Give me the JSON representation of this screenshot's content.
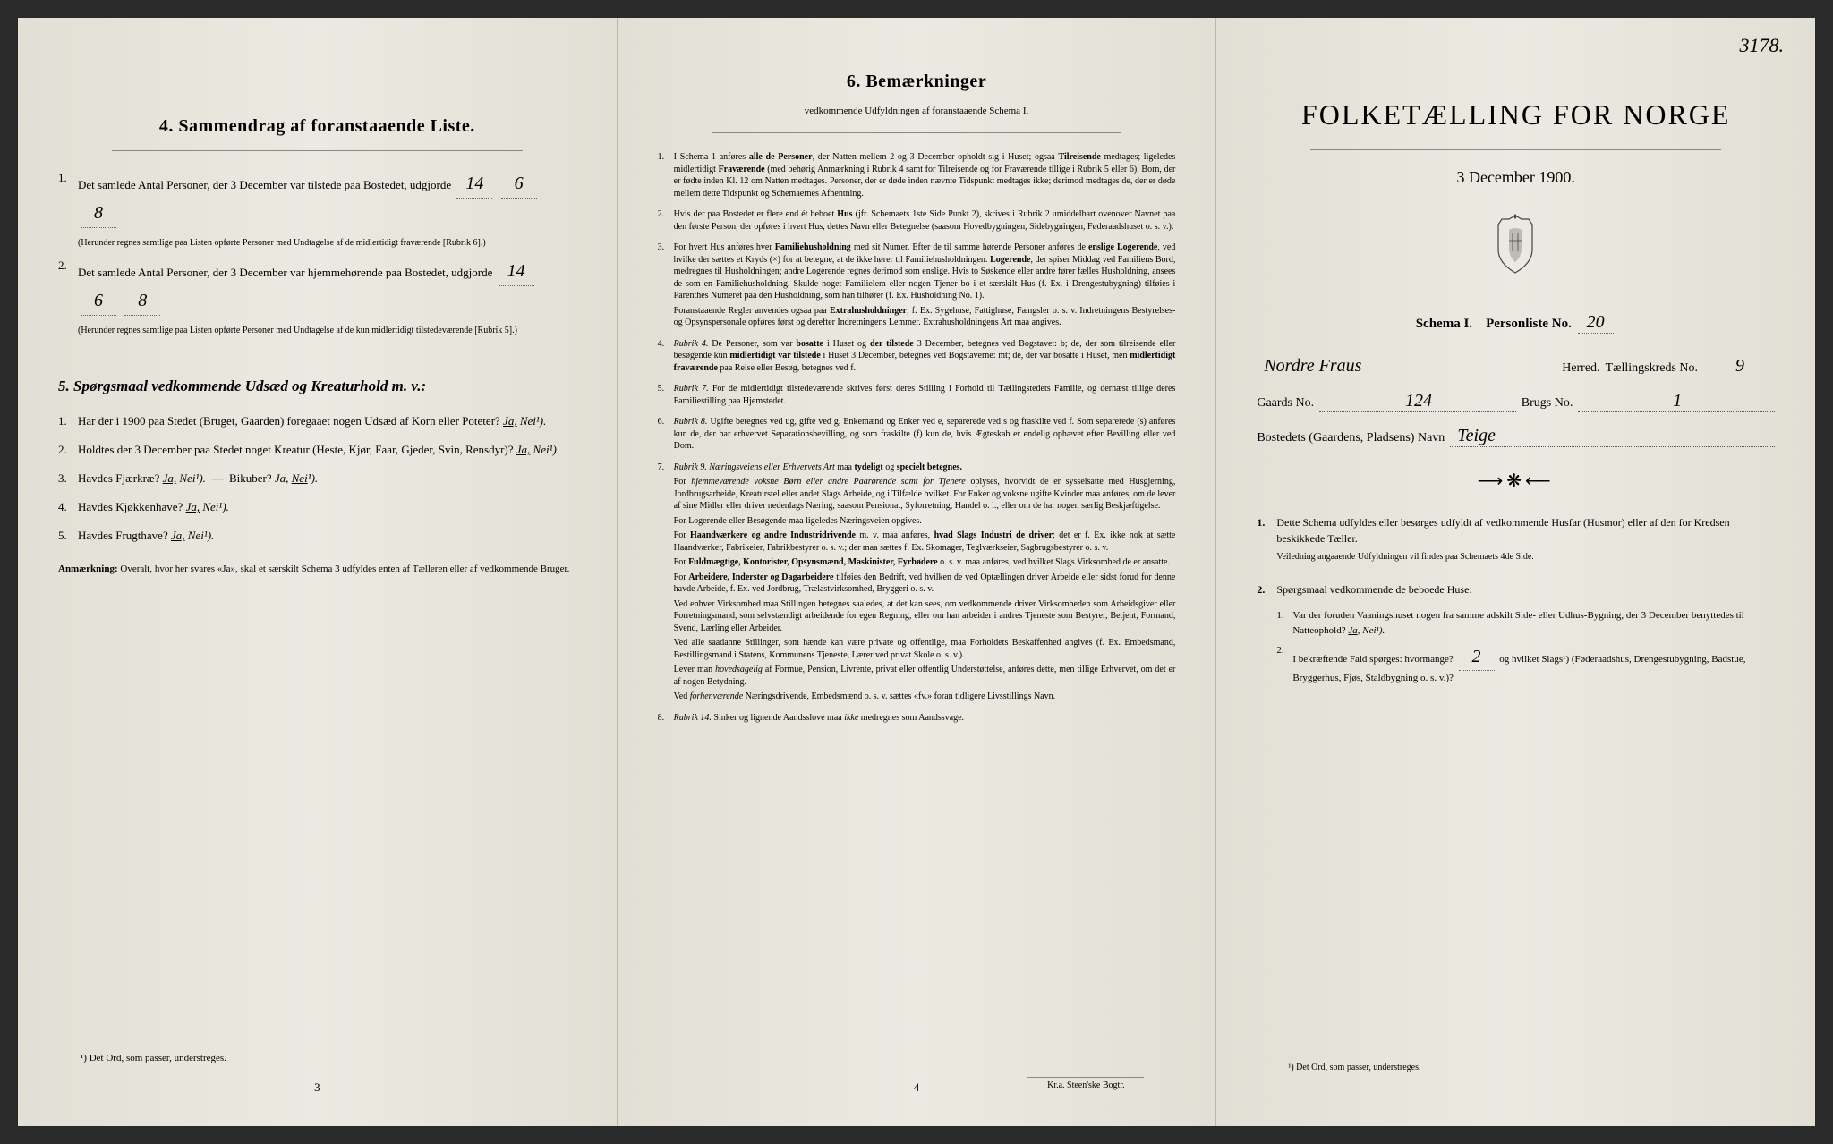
{
  "corner_number": "3178.",
  "page_left": {
    "section4_title": "4.   Sammendrag af foranstaaende Liste.",
    "item1": "Det samlede Antal Personer, der 3 December var tilstede paa Bostedet, udgjorde",
    "item1_total": "14",
    "item1_m": "6",
    "item1_f": "8",
    "item1_note": "(Herunder regnes samtlige paa Listen opførte Personer med Undtagelse af de midlertidigt fraværende [Rubrik 6].)",
    "item2": "Det samlede Antal Personer, der 3 December var hjemmehørende paa Bostedet, udgjorde",
    "item2_total": "14",
    "item2_m": "6",
    "item2_f": "8",
    "item2_note": "(Herunder regnes samtlige paa Listen opførte Personer med Undtagelse af de kun midlertidigt tilstedeværende [Rubrik 5].)",
    "section5_title": "5.   Spørgsmaal vedkommende Udsæd og Kreaturhold m. v.:",
    "q1": "Har der i 1900 paa Stedet (Bruget, Gaarden) foregaaet nogen Udsæd af Korn eller Poteter?",
    "q2": "Holdtes der 3 December paa Stedet noget Kreatur (Heste, Kjør, Faar, Gjeder, Svin, Rensdyr)?",
    "q3a": "Havdes Fjærkræ?",
    "q3b": "Bikuber?",
    "q4": "Havdes Kjøkkenhave?",
    "q5": "Havdes Frugthave?",
    "ja": "Ja,",
    "nei": "Nei",
    "nei_sup": "¹).",
    "anmaerkning_label": "Anmærkning:",
    "anmaerkning": "Overalt, hvor her svares «Ja», skal et særskilt Schema 3 udfyldes enten af Tælleren eller af vedkommende Bruger.",
    "footnote": "¹) Det Ord, som passer, understreges.",
    "page_num": "3"
  },
  "page_middle": {
    "title": "6.   Bemærkninger",
    "subtitle": "vedkommende Udfyldningen af foranstaaende Schema I.",
    "items": [
      {
        "num": "1.",
        "paras": [
          "I Schema 1 anføres <b>alle de Personer</b>, der Natten mellem 2 og 3 December opholdt sig i Huset; ogsaa <b>Tilreisende</b> medtages; ligeledes midlertidigt <b>Fraværende</b> (med behørig Anmærkning i Rubrik 4 samt for Tilreisende og for Fraværende tillige i Rubrik 5 eller 6). Born, der er fødte inden Kl. 12 om Natten medtages. Personer, der er døde inden nævnte Tidspunkt medtages ikke; derimod medtages de, der er døde mellem dette Tidspunkt og Schemaernes Afhentning."
        ]
      },
      {
        "num": "2.",
        "paras": [
          "Hvis der paa Bostedet er flere end ét beboet <b>Hus</b> (jfr. Schemaets 1ste Side Punkt 2), skrives i Rubrik 2 umiddelbart ovenover Navnet paa den første Person, der opføres i hvert Hus, dettes Navn eller Betegnelse (saasom Hovedbygningen, Sidebygningen, Føderaadshuset o. s. v.)."
        ]
      },
      {
        "num": "3.",
        "paras": [
          "For hvert Hus anføres hver <b>Familiehusholdning</b> med sit Numer. Efter de til samme hørende Personer anføres de <b>enslige Logerende</b>, ved hvilke der sættes et Kryds (×) for at betegne, at de ikke hører til Familiehusholdningen. <b>Logerende</b>, der spiser Middag ved Familiens Bord, medregnes til Husholdningen; andre Logerende regnes derimod som enslige. Hvis to Søskende eller andre fører fælles Husholdning, ansees de som en Familiehusholdning. Skulde noget Familielem eller nogen Tjener bo i et særskilt Hus (f. Ex. i Drengestubygning) tilføies i Parenthes Numeret paa den Husholdning, som han tilhører (f. Ex. Husholdning No. 1).",
          "Foranstaaende Regler anvendes ogsaa paa <b>Extrahusholdninger</b>, f. Ex. Sygehuse, Fattighuse, Fængsler o. s. v. Indretningens Bestyrelses- og Opsynspersonale opføres først og derefter Indretningens Lemmer. Extrahusholdningens Art maa angives."
        ]
      },
      {
        "num": "4.",
        "paras": [
          "<i>Rubrik 4.</i> De Personer, som var <b>bosatte</b> i Huset og <b>der tilstede</b> 3 December, betegnes ved Bogstavet: b; de, der som tilreisende eller besøgende kun <b>midlertidigt var tilstede</b> i Huset 3 December, betegnes ved Bogstaverne: mt; de, der var bosatte i Huset, men <b>midlertidigt fraværende</b> paa Reise eller Besøg, betegnes ved f."
        ]
      },
      {
        "num": "5.",
        "paras": [
          "<i>Rubrik 7.</i> For de midlertidigt tilstedeværende skrives først deres Stilling i Forhold til Tællingstedets Familie, og dernæst tillige deres Familiestilling paa Hjemstedet."
        ]
      },
      {
        "num": "6.",
        "paras": [
          "<i>Rubrik 8.</i> Ugifte betegnes ved ug, gifte ved g, Enkemænd og Enker ved e, separerede ved s og fraskilte ved f. Som separerede (s) anføres kun de, der har erhvervet Separationsbevilling, og som fraskilte (f) kun de, hvis Ægteskab er endelig ophævet efter Bevilling eller ved Dom."
        ]
      },
      {
        "num": "7.",
        "paras": [
          "<i>Rubrik 9. Næringsveiens eller Erhvervets Art</i> maa <b>tydeligt</b> og <b>specielt betegnes.</b>",
          "For <i>hjemmeværende voksne Børn eller andre Paarørende samt for Tjenere</i> oplyses, hvorvidt de er sysselsatte med Husgjerning, Jordbrugsarbeide, Kreaturstel eller andet Slags Arbeide, og i Tilfælde hvilket. For Enker og voksne ugifte Kvinder maa anføres, om de lever af sine Midler eller driver nedenlags Næring, saasom Pensionat, Syforretning, Handel o. l., eller om de har nogen særlig Beskjæftigelse.",
          "For Logerende eller Besøgende maa ligeledes Næringsveien opgives.",
          "For <b>Haandværkere og andre Industridrivende</b> m. v. maa anføres, <b>hvad Slags Industri de driver</b>; det er f. Ex. ikke nok at sætte Haandværker, Fabrikeier, Fabrikbestyrer o. s. v.; der maa sættes f. Ex. Skomager, Teglværkseier, Sagbrugsbestyrer o. s. v.",
          "For <b>Fuldmægtige, Kontorister, Opsynsmænd, Maskinister, Fyrbødere</b> o. s. v. maa anføres, ved hvilket Slags Virksomhed de er ansatte.",
          "For <b>Arbeidere, Inderster og Dagarbeidere</b> tilføies den Bedrift, ved hvilken de ved Optællingen driver Arbeide eller sidst forud for denne havde Arbeide, f. Ex. ved Jordbrug, Trælastvirksomhed, Bryggeri o. s. v.",
          "Ved enhver Virksomhed maa Stillingen betegnes saaledes, at det kan sees, om vedkommende driver Virksomheden som Arbeidsgiver eller Forretningsmand, som selvstændigt arbeidende for egen Regning, eller om han arbeider i andres Tjeneste som Bestyrer, Betjent, Formand, Svend, Lærling eller Arbeider.",
          "Ved alle saadanne Stillinger, som hænde kan være private og offentlige, maa Forholdets Beskaffenhed angives (f. Ex. Embedsmand, Bestillingsmand i Statens, Kommunens Tjeneste, Lærer ved privat Skole o. s. v.).",
          "Lever man <i>hovedsagelig</i> af Formue, Pension, Livrente, privat eller offentlig Understøttelse, anføres dette, men tillige Erhvervet, om det er af nogen Betydning.",
          "Ved <i>forhenværende</i> Næringsdrivende, Embedsmænd o. s. v. sættes «fv.» foran tidligere Livsstillings Navn."
        ]
      },
      {
        "num": "8.",
        "paras": [
          "<i>Rubrik 14.</i> Sinker og lignende Aandsslove maa <i>ikke</i> medregnes som Aandssvage."
        ]
      }
    ],
    "page_num": "4",
    "printer": "Kr.a.  Steen'ske Bogtr."
  },
  "page_right": {
    "title": "FOLKETÆLLING FOR NORGE",
    "date": "3 December 1900.",
    "schema_label": "Schema I.",
    "personliste_label": "Personliste No.",
    "personliste_no": "20",
    "herred_value": "Nordre Fraus",
    "herred_label": "Herred.",
    "taellingskreds_label": "Tællingskreds No.",
    "taellingskreds_no": "9",
    "gaards_label": "Gaards No.",
    "gaards_no": "124",
    "brugs_label": "Brugs No.",
    "brugs_no": "1",
    "bostedets_label": "Bostedets (Gaardens, Pladsens) Navn",
    "bostedets_value": "Teige",
    "item1": "Dette Schema udfyldes eller besørges udfyldt af vedkommende Husfar (Husmor) eller af den for Kredsen beskikkede Tæller.",
    "item1_sub": "Veiledning angaaende Udfyldningen vil findes paa Schemaets 4de Side.",
    "item2": "Spørgsmaal vedkommende de beboede Huse:",
    "sq1": "Var der foruden Vaaningshuset nogen fra samme adskilt Side- eller Udhus-Bygning, der 3 December benyttedes til Natteophold?",
    "sq1_ja": "Ja,",
    "sq1_nei": "Nei¹).",
    "sq2_a": "I bekræftende Fald spørges: hvormange?",
    "sq2_val": "2",
    "sq2_b": "og hvilket Slags¹) (Føderaadshus, Drengestubygning, Badstue, Bryggerhus, Fjøs, Staldbygning o. s. v.)?",
    "footnote": "¹) Det Ord, som passer, understreges."
  },
  "colors": {
    "paper": "#e8e6df",
    "paper_shadow": "#d8d5ca",
    "text": "#2a2a28",
    "line": "#888888"
  }
}
